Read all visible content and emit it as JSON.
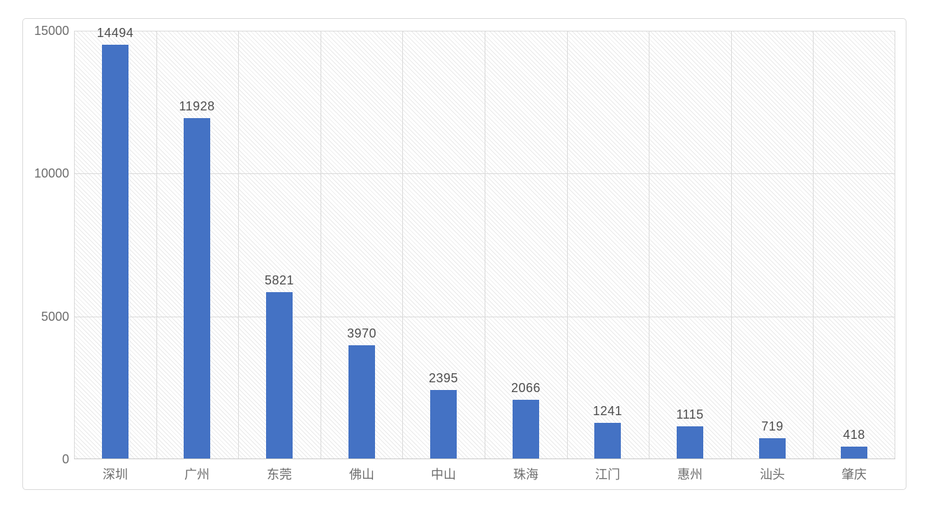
{
  "chart_data": {
    "type": "bar",
    "title": "",
    "xlabel": "",
    "ylabel": "",
    "categories": [
      "深圳",
      "广州",
      "东莞",
      "佛山",
      "中山",
      "珠海",
      "江门",
      "惠州",
      "汕头",
      "肇庆"
    ],
    "values": [
      14494,
      11928,
      5821,
      3970,
      2395,
      2066,
      1241,
      1115,
      719,
      418
    ],
    "ylim": [
      0,
      15000
    ],
    "yticks": [
      0,
      5000,
      10000,
      15000
    ],
    "grid": "on",
    "legend_position": "none",
    "data_labels": "above-bars",
    "plot_background": "diagonal-hatch"
  },
  "colors": {
    "bar": "#4472C4",
    "gridline": "#dadada",
    "axis_line": "#c9c9c9",
    "tick_label": "#6e6e6e",
    "data_label": "#4e4e4e",
    "frame_border": "#d9d9d9",
    "background": "#ffffff"
  }
}
